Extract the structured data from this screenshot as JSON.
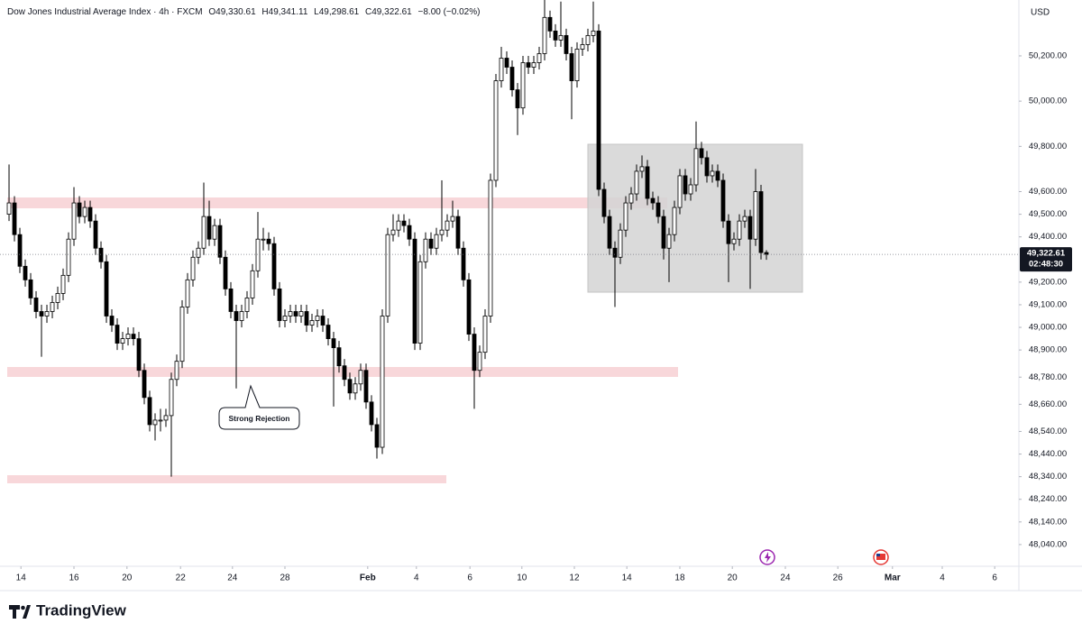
{
  "chart_data": {
    "type": "candlestick",
    "title": "Dow Jones Industrial Average Index · 4h · FXCM",
    "header_values": [
      "O49,330.61",
      "H49,341.11",
      "L49,298.61",
      "C49,322.61",
      "−8.00 (−0.02%)"
    ],
    "currency": "USD",
    "annotation": "Strong Rejection",
    "last_price_label": "49,322.61",
    "countdown": "02:48:30",
    "up_color": "#ffffff",
    "down_color": "#000000",
    "wick_color": "#000000",
    "open": [
      49500,
      49550,
      49410,
      49270,
      49210,
      49130,
      49070,
      49050,
      49070,
      49110,
      49150,
      49230,
      49390,
      49550,
      49490,
      49530,
      49470,
      49350,
      49290,
      49050,
      49010,
      48930,
      48950,
      48970,
      48950,
      48810,
      48690,
      48570,
      48590,
      48590,
      48610,
      48770,
      48850,
      49090,
      49210,
      49310,
      49350,
      49490,
      49390,
      49450,
      49310,
      49170,
      49070,
      49030,
      49070,
      49130,
      49250,
      49390,
      49390,
      49370,
      49170,
      49030,
      49050,
      49070,
      49050,
      49070,
      49010,
      49030,
      49050,
      49010,
      48950,
      48910,
      48830,
      48770,
      48710,
      48750,
      48810,
      48670,
      48570,
      48470,
      49050,
      49410,
      49430,
      49470,
      49450,
      49390,
      48930,
      49290,
      49390,
      49350,
      49410,
      49430,
      49470,
      49490,
      49350,
      49210,
      48970,
      48810,
      48890,
      49050,
      49650,
      50090,
      50190,
      50150,
      50050,
      49970,
      50170,
      50150,
      50170,
      50210,
      50370,
      50310,
      50270,
      50290,
      50210,
      50090,
      50230,
      50250,
      50290,
      50310,
      49610,
      49490,
      49350,
      49310,
      49430,
      49550,
      49590,
      49690,
      49710,
      49570,
      49550,
      49490,
      49350,
      49410,
      49530,
      49670,
      49590,
      49630,
      49790,
      49750,
      49670,
      49690,
      49650,
      49470,
      49370,
      49390,
      49470,
      49490,
      49390,
      49600,
      49330.61
    ],
    "high": [
      49720,
      49580,
      49440,
      49300,
      49240,
      49160,
      49100,
      49100,
      49140,
      49180,
      49260,
      49420,
      49620,
      49580,
      49560,
      49560,
      49500,
      49380,
      49320,
      49080,
      49040,
      48980,
      49000,
      49000,
      48980,
      48840,
      48720,
      48620,
      48640,
      48640,
      48800,
      48880,
      49120,
      49240,
      49340,
      49380,
      49640,
      49560,
      49480,
      49480,
      49340,
      49200,
      49100,
      49100,
      49160,
      49280,
      49510,
      49440,
      49420,
      49400,
      49200,
      49080,
      49100,
      49100,
      49100,
      49100,
      49060,
      49080,
      49080,
      49040,
      48980,
      48940,
      48860,
      48800,
      48780,
      48840,
      48840,
      48700,
      48600,
      49080,
      49440,
      49500,
      49500,
      49500,
      49480,
      49420,
      49320,
      49420,
      49420,
      49440,
      49650,
      49500,
      49560,
      49520,
      49380,
      49240,
      49000,
      48920,
      49080,
      49680,
      50120,
      50240,
      50220,
      50180,
      50080,
      50200,
      50200,
      50200,
      50240,
      50460,
      50400,
      50340,
      50440,
      50320,
      50240,
      50260,
      50280,
      50320,
      50440,
      50340,
      49640,
      49520,
      49380,
      49460,
      49580,
      49620,
      49720,
      49760,
      49740,
      49600,
      49580,
      49520,
      49440,
      49560,
      49700,
      49700,
      49660,
      49910,
      49820,
      49780,
      49720,
      49720,
      49680,
      49500,
      49420,
      49500,
      49520,
      49520,
      49700,
      49630,
      49341.11
    ],
    "low": [
      49470,
      49380,
      49240,
      49180,
      49100,
      49040,
      48870,
      49020,
      49040,
      49080,
      49120,
      49200,
      49360,
      49460,
      49460,
      49440,
      49320,
      49260,
      49020,
      48980,
      48900,
      48900,
      48920,
      48920,
      48780,
      48660,
      48540,
      48500,
      48540,
      48560,
      48340,
      48740,
      48820,
      49060,
      49180,
      49280,
      49320,
      49360,
      49360,
      49280,
      49140,
      49040,
      48730,
      49000,
      49040,
      49100,
      49220,
      49340,
      49340,
      49140,
      49000,
      49000,
      49020,
      49020,
      49020,
      48980,
      48980,
      49000,
      48980,
      48920,
      48650,
      48800,
      48740,
      48680,
      48680,
      48720,
      48640,
      48540,
      48420,
      48440,
      49020,
      49380,
      49400,
      49420,
      49360,
      48900,
      48900,
      49260,
      49320,
      49320,
      49380,
      49400,
      49440,
      49320,
      49180,
      48940,
      48640,
      48780,
      48860,
      49020,
      49620,
      50060,
      50120,
      50020,
      49850,
      49940,
      50120,
      50120,
      50140,
      50180,
      50280,
      50240,
      50240,
      50180,
      49920,
      50060,
      50200,
      50220,
      50260,
      49580,
      49460,
      49320,
      49090,
      49280,
      49400,
      49520,
      49560,
      49660,
      49540,
      49520,
      49460,
      49300,
      49200,
      49380,
      49500,
      49560,
      49560,
      49600,
      49720,
      49640,
      49640,
      49620,
      49440,
      49200,
      49340,
      49360,
      49440,
      49170,
      49360,
      49300,
      49298.61
    ],
    "close": [
      49550,
      49410,
      49270,
      49210,
      49130,
      49070,
      49050,
      49070,
      49110,
      49150,
      49230,
      49390,
      49550,
      49490,
      49530,
      49470,
      49350,
      49290,
      49050,
      49010,
      48930,
      48950,
      48970,
      48950,
      48810,
      48690,
      48570,
      48590,
      48590,
      48610,
      48770,
      48850,
      49090,
      49210,
      49310,
      49350,
      49490,
      49390,
      49450,
      49310,
      49170,
      49070,
      49030,
      49070,
      49130,
      49250,
      49390,
      49390,
      49370,
      49170,
      49030,
      49050,
      49070,
      49050,
      49070,
      49010,
      49030,
      49050,
      49010,
      48950,
      48910,
      48830,
      48770,
      48710,
      48750,
      48810,
      48670,
      48570,
      48470,
      49050,
      49410,
      49430,
      49470,
      49450,
      49390,
      48930,
      49290,
      49390,
      49350,
      49410,
      49430,
      49470,
      49490,
      49350,
      49210,
      48970,
      48810,
      48890,
      49050,
      49650,
      50090,
      50190,
      50150,
      50050,
      49970,
      50170,
      50150,
      50170,
      50210,
      50370,
      50310,
      50270,
      50290,
      50210,
      50090,
      50230,
      50250,
      50290,
      50310,
      49610,
      49490,
      49350,
      49310,
      49430,
      49550,
      49590,
      49690,
      49710,
      49570,
      49550,
      49490,
      49350,
      49410,
      49530,
      49670,
      49590,
      49630,
      49790,
      49750,
      49670,
      49690,
      49650,
      49470,
      49370,
      49390,
      49470,
      49490,
      49390,
      49600,
      49330.61,
      49322.61
    ],
    "ylim": [
      47944,
      50447
    ],
    "yticks": [
      {
        "value": 50200,
        "label": "50,200.00"
      },
      {
        "value": 50000,
        "label": "50,000.00"
      },
      {
        "value": 49800,
        "label": "49,800.00"
      },
      {
        "value": 49600,
        "label": "49,600.00"
      },
      {
        "value": 49500,
        "label": "49,500.00"
      },
      {
        "value": 49400,
        "label": "49,400.00"
      },
      {
        "value": 49200,
        "label": "49,200.00"
      },
      {
        "value": 49100,
        "label": "49,100.00"
      },
      {
        "value": 49000,
        "label": "49,000.00"
      },
      {
        "value": 48900,
        "label": "48,900.00"
      },
      {
        "value": 48780,
        "label": "48,780.00"
      },
      {
        "value": 48660,
        "label": "48,660.00"
      },
      {
        "value": 48540,
        "label": "48,540.00"
      },
      {
        "value": 48440,
        "label": "48,440.00"
      },
      {
        "value": 48340,
        "label": "48,340.00"
      },
      {
        "value": 48240,
        "label": "48,240.00"
      },
      {
        "value": 48140,
        "label": "48,140.00"
      },
      {
        "value": 48040,
        "label": "48,040.00"
      }
    ],
    "xlim": [
      -1.67,
      186.67
    ],
    "xticks": [
      {
        "value": 2.2,
        "label": "14"
      },
      {
        "value": 12,
        "label": "16"
      },
      {
        "value": 21.8,
        "label": "20"
      },
      {
        "value": 31.7,
        "label": "22"
      },
      {
        "value": 41.3,
        "label": "24"
      },
      {
        "value": 51,
        "label": "28"
      },
      {
        "value": 66.3,
        "label": "Feb"
      },
      {
        "value": 75.3,
        "label": "4"
      },
      {
        "value": 85.2,
        "label": "6"
      },
      {
        "value": 94.8,
        "label": "10"
      },
      {
        "value": 104.5,
        "label": "12"
      },
      {
        "value": 114.2,
        "label": "14"
      },
      {
        "value": 124,
        "label": "18"
      },
      {
        "value": 133.7,
        "label": "20"
      },
      {
        "value": 143.5,
        "label": "24"
      },
      {
        "value": 153.2,
        "label": "26"
      },
      {
        "value": 163.3,
        "label": "Mar"
      },
      {
        "value": 172.5,
        "label": "4"
      },
      {
        "value": 182.2,
        "label": "6"
      }
    ]
  },
  "brand": "TradingView"
}
